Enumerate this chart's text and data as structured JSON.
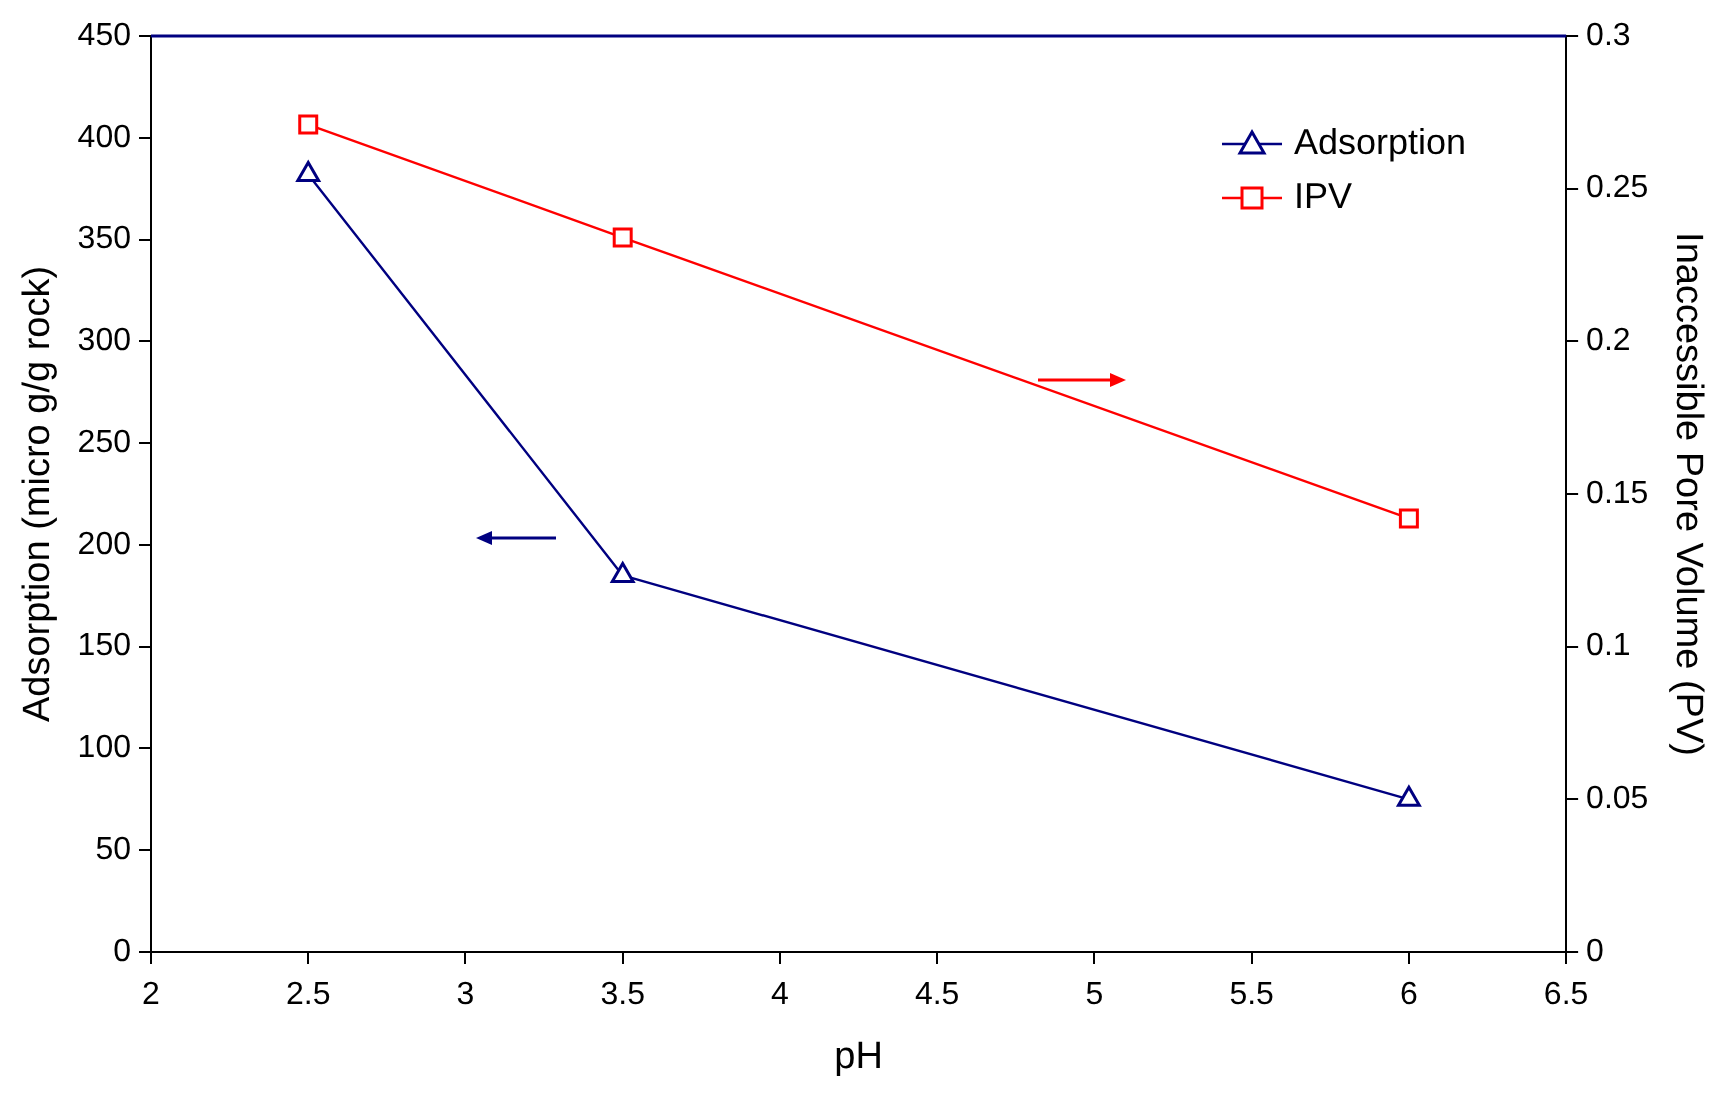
{
  "chart_data": {
    "type": "line",
    "xlabel": "pH",
    "ylabel": "Adsorption (micro g/g rock)",
    "y2label": "Inaccessible Pore Volume (PV)",
    "x": [
      2.5,
      3.5,
      6
    ],
    "series": [
      {
        "name": "Adsorption",
        "color": "#000080",
        "values": [
          382,
          185,
          75
        ],
        "marker": "triangle"
      },
      {
        "name": "IPV",
        "color": "#ff0000",
        "values": [
          0.271,
          0.234,
          0.142
        ],
        "marker": "square",
        "axis": "y2"
      }
    ],
    "xlim": [
      2,
      6.5
    ],
    "xticks": [
      2,
      2.5,
      3,
      3.5,
      4,
      4.5,
      5,
      5.5,
      6,
      6.5
    ],
    "ylim": [
      0,
      450
    ],
    "yticks": [
      0,
      50,
      100,
      150,
      200,
      250,
      300,
      350,
      400,
      450
    ],
    "y2lim": [
      0,
      0.3
    ],
    "y2ticks": [
      0,
      0.05,
      0.1,
      0.15,
      0.2,
      0.25,
      0.3
    ],
    "grid": false,
    "legend": "top right",
    "line_style": "solid"
  }
}
